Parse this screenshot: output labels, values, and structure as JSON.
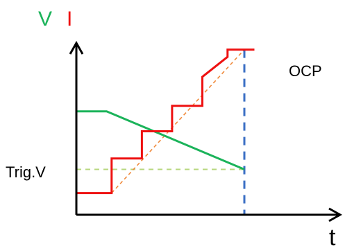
{
  "labels": {
    "v_axis": "V",
    "i_axis": "I",
    "t_axis": "t",
    "ocp": "OCP",
    "trig_v": "Trig.V"
  },
  "colors": {
    "voltage": "#1bb35a",
    "current": "#ee1111",
    "axis": "#000000",
    "trend": "#f08a3c",
    "trig_line": "#b7d77d",
    "ocp_marker": "#3b6fc4"
  },
  "chart_data": {
    "type": "line",
    "x_range": [
      0,
      10
    ],
    "y_range": [
      0,
      10
    ],
    "series": [
      {
        "key": "voltage",
        "points": [
          [
            0,
            5.7
          ],
          [
            1.8,
            5.7
          ],
          [
            10,
            2.5
          ]
        ]
      },
      {
        "key": "current",
        "points": [
          [
            0,
            1.2
          ],
          [
            2.1,
            1.2
          ],
          [
            2.1,
            3.1
          ],
          [
            3.9,
            3.1
          ],
          [
            3.9,
            4.6
          ],
          [
            5.7,
            4.6
          ],
          [
            5.7,
            6.0
          ],
          [
            7.5,
            6.0
          ],
          [
            7.5,
            7.6
          ],
          [
            9.0,
            8.7
          ],
          [
            9.0,
            9.1
          ],
          [
            10.6,
            9.1
          ]
        ]
      },
      {
        "key": "trend",
        "points": [
          [
            2.1,
            1.2
          ],
          [
            10,
            9.1
          ]
        ]
      },
      {
        "key": "trig_line",
        "points": [
          [
            0,
            2.5
          ],
          [
            10,
            2.5
          ]
        ]
      },
      {
        "key": "ocp_marker",
        "points": [
          [
            10,
            9.1
          ],
          [
            10,
            0
          ]
        ]
      }
    ]
  }
}
